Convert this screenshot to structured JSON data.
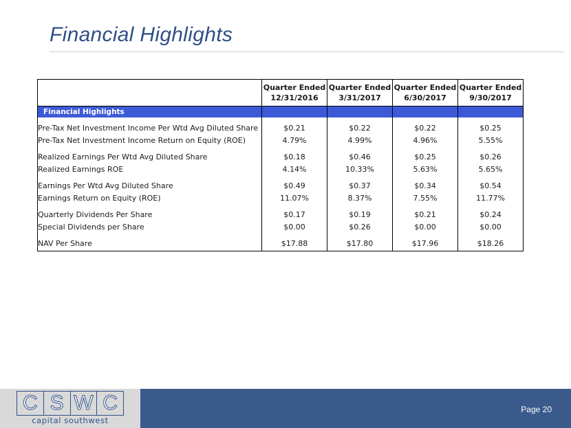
{
  "slide": {
    "title": "Financial Highlights",
    "page_label": "Page 20"
  },
  "logo": {
    "letters": [
      "C",
      "S",
      "W",
      "C"
    ],
    "subtitle": "capital southwest"
  },
  "table": {
    "headers": [
      {
        "line1": "Quarter Ended",
        "line2": "12/31/2016"
      },
      {
        "line1": "Quarter Ended",
        "line2": "3/31/2017"
      },
      {
        "line1": "Quarter Ended",
        "line2": "6/30/2017"
      },
      {
        "line1": "Quarter Ended",
        "line2": "9/30/2017"
      }
    ],
    "section_label": "Financial Highlights",
    "rows": [
      {
        "label": "Pre-Tax Net Investment Income Per Wtd Avg Diluted Share",
        "values": [
          "$0.21",
          "$0.22",
          "$0.22",
          "$0.25"
        ]
      },
      {
        "label": "Pre-Tax Net Investment Income Return on Equity (ROE)",
        "values": [
          "4.79%",
          "4.99%",
          "4.96%",
          "5.55%"
        ]
      },
      {
        "label": "Realized Earnings Per Wtd Avg Diluted Share",
        "values": [
          "$0.18",
          "$0.46",
          "$0.25",
          "$0.26"
        ]
      },
      {
        "label": "Realized Earnings ROE",
        "values": [
          "4.14%",
          "10.33%",
          "5.63%",
          "5.65%"
        ]
      },
      {
        "label": "Earnings Per Wtd Avg Diluted Share",
        "values": [
          "$0.49",
          "$0.37",
          "$0.34",
          "$0.54"
        ]
      },
      {
        "label": "Earnings Return on Equity (ROE)",
        "values": [
          "11.07%",
          "8.37%",
          "7.55%",
          "11.77%"
        ]
      },
      {
        "label": "Quarterly Dividends Per Share",
        "values": [
          "$0.17",
          "$0.19",
          "$0.21",
          "$0.24"
        ]
      },
      {
        "label": "Special Dividends per Share",
        "values": [
          "$0.00",
          "$0.26",
          "$0.00",
          "$0.00"
        ]
      },
      {
        "label": "NAV Per Share",
        "values": [
          "$17.88",
          "$17.80",
          "$17.96",
          "$18.26"
        ]
      }
    ]
  },
  "colors": {
    "title": "#2f4f86",
    "section_band": "#3d5ad6",
    "footer_bar": "#3a5a8c",
    "logo_panel": "#d9d9d9"
  }
}
